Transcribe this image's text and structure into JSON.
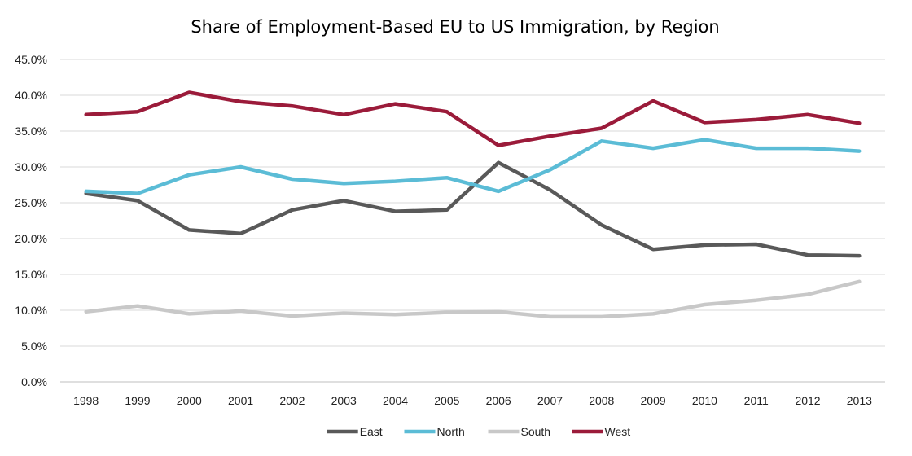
{
  "chart_data": {
    "type": "line",
    "title": "Share of Employment-Based EU to US Immigration, by Region",
    "xlabel": "",
    "ylabel": "",
    "categories": [
      "1998",
      "1999",
      "2000",
      "2001",
      "2002",
      "2003",
      "2004",
      "2005",
      "2006",
      "2007",
      "2008",
      "2009",
      "2010",
      "2011",
      "2012",
      "2013"
    ],
    "y_ticks": [
      "0.0%",
      "5.0%",
      "10.0%",
      "15.0%",
      "20.0%",
      "25.0%",
      "30.0%",
      "35.0%",
      "40.0%",
      "45.0%"
    ],
    "ylim": [
      0,
      45
    ],
    "grid": true,
    "legend_position": "bottom",
    "series": [
      {
        "name": "East",
        "color": "#595959",
        "values": [
          26.3,
          25.3,
          21.2,
          20.7,
          24.0,
          25.3,
          23.8,
          24.0,
          30.6,
          26.8,
          21.9,
          18.5,
          19.1,
          19.2,
          17.7,
          17.6
        ]
      },
      {
        "name": "North",
        "color": "#5bbcd6",
        "values": [
          26.6,
          26.3,
          28.9,
          30.0,
          28.3,
          27.7,
          28.0,
          28.5,
          26.6,
          29.6,
          33.6,
          32.6,
          33.8,
          32.6,
          32.6,
          32.2
        ]
      },
      {
        "name": "South",
        "color": "#c8c8c8",
        "values": [
          9.8,
          10.6,
          9.5,
          9.9,
          9.2,
          9.6,
          9.4,
          9.7,
          9.8,
          9.1,
          9.1,
          9.5,
          10.8,
          11.4,
          12.2,
          14.0
        ]
      },
      {
        "name": "West",
        "color": "#9b1b3a",
        "values": [
          37.3,
          37.7,
          40.4,
          39.1,
          38.5,
          37.3,
          38.8,
          37.7,
          33.0,
          34.3,
          35.4,
          39.2,
          36.2,
          36.6,
          37.3,
          36.1
        ]
      }
    ]
  }
}
